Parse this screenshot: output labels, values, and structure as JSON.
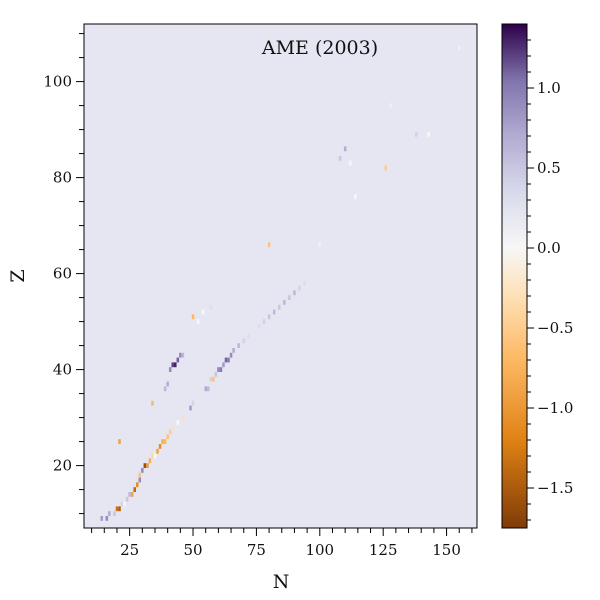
{
  "chart_data": {
    "type": "heatmap",
    "title": "",
    "annotation": "AME (2003)",
    "xlabel": "N",
    "ylabel": "Z",
    "xlim": [
      7,
      162
    ],
    "ylim": [
      7,
      112
    ],
    "xticks": [
      25,
      50,
      75,
      100,
      125,
      150
    ],
    "xtick_labels": [
      "25",
      "50",
      "75",
      "100",
      "125",
      "150"
    ],
    "yticks": [
      20,
      40,
      60,
      80,
      100
    ],
    "ytick_labels": [
      "20",
      "40",
      "60",
      "80",
      "100"
    ],
    "colorbar": {
      "ticks": [
        1.0,
        0.5,
        0.0,
        -0.5,
        -1.0,
        -1.5
      ],
      "tick_labels": [
        "1.0",
        "0.5",
        "0.0",
        "−0.5",
        "−1.0",
        "−1.5"
      ],
      "vmin": -1.75,
      "vmax": 1.4,
      "colormap": "PuOr",
      "stops": [
        {
          "v": -1.75,
          "color": "#7f3b08"
        },
        {
          "v": -1.2,
          "color": "#e08214"
        },
        {
          "v": -0.7,
          "color": "#fdb863"
        },
        {
          "v": -0.3,
          "color": "#fee0b6"
        },
        {
          "v": 0.0,
          "color": "#f7f7f7"
        },
        {
          "v": 0.35,
          "color": "#d8daeb"
        },
        {
          "v": 0.7,
          "color": "#b2abd2"
        },
        {
          "v": 1.05,
          "color": "#8073ac"
        },
        {
          "v": 1.4,
          "color": "#2d004b"
        }
      ]
    },
    "background_value": 0.15,
    "cells": [
      {
        "n": 14,
        "z": 9,
        "v": 0.8
      },
      {
        "n": 16,
        "z": 9,
        "v": 0.9
      },
      {
        "n": 17,
        "z": 10,
        "v": 0.7
      },
      {
        "n": 19,
        "z": 10,
        "v": 0.5
      },
      {
        "n": 20,
        "z": 11,
        "v": -1.3
      },
      {
        "n": 21,
        "z": 11,
        "v": -1.5
      },
      {
        "n": 22,
        "z": 12,
        "v": 0.4
      },
      {
        "n": 23,
        "z": 12,
        "v": 0.0
      },
      {
        "n": 24,
        "z": 13,
        "v": 0.5
      },
      {
        "n": 25,
        "z": 14,
        "v": 0.6
      },
      {
        "n": 26,
        "z": 14,
        "v": -0.9
      },
      {
        "n": 27,
        "z": 15,
        "v": -1.4
      },
      {
        "n": 28,
        "z": 16,
        "v": -1.1
      },
      {
        "n": 29,
        "z": 17,
        "v": 0.9
      },
      {
        "n": 29,
        "z": 18,
        "v": -0.6
      },
      {
        "n": 30,
        "z": 19,
        "v": 0.9
      },
      {
        "n": 31,
        "z": 20,
        "v": -1.6
      },
      {
        "n": 32,
        "z": 20,
        "v": -1.0
      },
      {
        "n": 33,
        "z": 21,
        "v": -0.8
      },
      {
        "n": 34,
        "z": 22,
        "v": -0.4
      },
      {
        "n": 35,
        "z": 22,
        "v": 0.0
      },
      {
        "n": 36,
        "z": 23,
        "v": -0.9
      },
      {
        "n": 37,
        "z": 24,
        "v": -1.1
      },
      {
        "n": 38,
        "z": 25,
        "v": -0.8
      },
      {
        "n": 39,
        "z": 25,
        "v": -0.7
      },
      {
        "n": 40,
        "z": 26,
        "v": -0.6
      },
      {
        "n": 41,
        "z": 27,
        "v": -0.5
      },
      {
        "n": 42,
        "z": 28,
        "v": -0.3
      },
      {
        "n": 44,
        "z": 29,
        "v": 0.0
      },
      {
        "n": 46,
        "z": 30,
        "v": -0.3
      },
      {
        "n": 47,
        "z": 31,
        "v": 0.2
      },
      {
        "n": 49,
        "z": 32,
        "v": 0.8
      },
      {
        "n": 50,
        "z": 33,
        "v": 0.4
      },
      {
        "n": 21,
        "z": 25,
        "v": -0.9
      },
      {
        "n": 34,
        "z": 33,
        "v": -0.7
      },
      {
        "n": 39,
        "z": 36,
        "v": 0.6
      },
      {
        "n": 40,
        "z": 37,
        "v": 0.7
      },
      {
        "n": 41,
        "z": 40,
        "v": 0.9
      },
      {
        "n": 42,
        "z": 41,
        "v": 1.2
      },
      {
        "n": 43,
        "z": 41,
        "v": 1.3
      },
      {
        "n": 44,
        "z": 42,
        "v": 1.1
      },
      {
        "n": 45,
        "z": 43,
        "v": 0.9
      },
      {
        "n": 46,
        "z": 43,
        "v": 0.6
      },
      {
        "n": 55,
        "z": 36,
        "v": 0.7
      },
      {
        "n": 56,
        "z": 36,
        "v": 0.6
      },
      {
        "n": 57,
        "z": 38,
        "v": 0.4
      },
      {
        "n": 58,
        "z": 38,
        "v": -0.6
      },
      {
        "n": 59,
        "z": 39,
        "v": 0.5
      },
      {
        "n": 60,
        "z": 40,
        "v": 0.9
      },
      {
        "n": 61,
        "z": 40,
        "v": 1.0
      },
      {
        "n": 62,
        "z": 41,
        "v": 0.8
      },
      {
        "n": 63,
        "z": 42,
        "v": 1.1
      },
      {
        "n": 64,
        "z": 42,
        "v": 1.0
      },
      {
        "n": 65,
        "z": 43,
        "v": 0.9
      },
      {
        "n": 66,
        "z": 44,
        "v": 0.7
      },
      {
        "n": 68,
        "z": 45,
        "v": 0.6
      },
      {
        "n": 70,
        "z": 46,
        "v": 0.4
      },
      {
        "n": 72,
        "z": 47,
        "v": 0.3
      },
      {
        "n": 74,
        "z": 48,
        "v": 0.2
      },
      {
        "n": 76,
        "z": 49,
        "v": 0.3
      },
      {
        "n": 78,
        "z": 50,
        "v": 0.4
      },
      {
        "n": 80,
        "z": 51,
        "v": 0.5
      },
      {
        "n": 82,
        "z": 52,
        "v": 0.6
      },
      {
        "n": 84,
        "z": 53,
        "v": 0.5
      },
      {
        "n": 86,
        "z": 54,
        "v": 0.6
      },
      {
        "n": 88,
        "z": 55,
        "v": 0.5
      },
      {
        "n": 90,
        "z": 56,
        "v": 0.6
      },
      {
        "n": 92,
        "z": 57,
        "v": 0.4
      },
      {
        "n": 94,
        "z": 58,
        "v": 0.3
      },
      {
        "n": 50,
        "z": 51,
        "v": -0.7
      },
      {
        "n": 52,
        "z": 50,
        "v": 0.0
      },
      {
        "n": 54,
        "z": 52,
        "v": 0.0
      },
      {
        "n": 57,
        "z": 53,
        "v": 0.3
      },
      {
        "n": 60,
        "z": 55,
        "v": 0.2
      },
      {
        "n": 80,
        "z": 66,
        "v": -0.6
      },
      {
        "n": 100,
        "z": 66,
        "v": 0.1
      },
      {
        "n": 105,
        "z": 80,
        "v": 0.2
      },
      {
        "n": 108,
        "z": 84,
        "v": 0.5
      },
      {
        "n": 110,
        "z": 86,
        "v": 0.7
      },
      {
        "n": 112,
        "z": 83,
        "v": 0.0
      },
      {
        "n": 114,
        "z": 76,
        "v": 0.0
      },
      {
        "n": 118,
        "z": 77,
        "v": 0.2
      },
      {
        "n": 126,
        "z": 82,
        "v": -0.5
      },
      {
        "n": 138,
        "z": 89,
        "v": 0.4
      },
      {
        "n": 143,
        "z": 89,
        "v": 0.0
      },
      {
        "n": 128,
        "z": 95,
        "v": 0.1
      },
      {
        "n": 155,
        "z": 107,
        "v": 0.1
      }
    ]
  }
}
